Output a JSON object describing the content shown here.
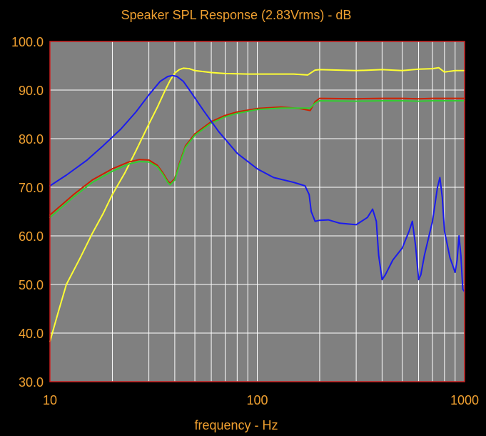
{
  "chart_data": {
    "type": "line",
    "title": "Speaker SPL Response (2.83Vrms) - dB",
    "xlabel": "frequency - Hz",
    "ylabel": "",
    "x_scale": "log",
    "xlim": [
      10,
      1000
    ],
    "ylim": [
      30,
      100
    ],
    "grid": true,
    "x_tick_labels": [
      "10",
      "100",
      "1000"
    ],
    "y_tick_labels": [
      "100.0",
      "90.0",
      "80.0",
      "70.0",
      "60.0",
      "50.0",
      "40.0",
      "30.0"
    ],
    "y_tick_values": [
      100,
      90,
      80,
      70,
      60,
      50,
      40,
      30
    ],
    "colors": {
      "background": "#000000",
      "plot_area": "#808080",
      "frame": "#cc2020",
      "grid": "#ffffff",
      "text": "#f0a030"
    },
    "series": [
      {
        "color": "#ffff33",
        "x": [
          10,
          11,
          12,
          14,
          16,
          18,
          20,
          23,
          26,
          30,
          33,
          36,
          38,
          40,
          42,
          44,
          47,
          50,
          60,
          70,
          90,
          110,
          150,
          175,
          190,
          200,
          300,
          400,
          500,
          600,
          700,
          750,
          800,
          900,
          1000
        ],
        "y": [
          38.3,
          44.5,
          50,
          55.5,
          60.5,
          64.5,
          68.5,
          73,
          77.5,
          83,
          86.5,
          90,
          92,
          93.5,
          94.2,
          94.5,
          94.4,
          94,
          93.6,
          93.4,
          93.3,
          93.3,
          93.3,
          93.1,
          94.1,
          94.2,
          94,
          94.2,
          94,
          94.3,
          94.4,
          94.6,
          93.7,
          94,
          94
        ]
      },
      {
        "color": "#cc2200",
        "x": [
          10,
          13,
          16,
          20,
          24,
          27,
          30,
          33,
          35,
          37,
          38,
          40,
          42,
          45,
          50,
          60,
          70,
          80,
          100,
          130,
          160,
          180,
          190,
          200,
          300,
          400,
          500,
          600,
          700,
          800,
          900,
          1000
        ],
        "y": [
          64.3,
          68.5,
          71.5,
          73.8,
          75.2,
          75.7,
          75.6,
          74.5,
          73,
          71.3,
          70.8,
          71.8,
          74.8,
          78.5,
          81,
          83.5,
          84.8,
          85.5,
          86.2,
          86.5,
          86.2,
          85.8,
          87.6,
          88.3,
          88.2,
          88.3,
          88.3,
          88.2,
          88.3,
          88.3,
          88.3,
          88.3
        ]
      },
      {
        "color": "#33cc33",
        "x": [
          10,
          13,
          16,
          20,
          24,
          27,
          30,
          33,
          35,
          37,
          38,
          40,
          42,
          45,
          50,
          60,
          70,
          80,
          100,
          130,
          160,
          180,
          190,
          200,
          300,
          400,
          500,
          600,
          700,
          800,
          900,
          1000
        ],
        "y": [
          63.8,
          68,
          71,
          73.3,
          74.8,
          75.3,
          75.2,
          74.2,
          72.7,
          71,
          70.5,
          71.5,
          74.5,
          78.2,
          80.7,
          83.2,
          84.5,
          85.2,
          86,
          86.3,
          86.3,
          86.3,
          87.3,
          87.8,
          87.7,
          87.8,
          87.8,
          87.7,
          87.8,
          87.8,
          87.8,
          87.8
        ]
      },
      {
        "color": "#1a1aee",
        "x": [
          10,
          12,
          15,
          18,
          22,
          26,
          30,
          34,
          37,
          39,
          41,
          44,
          48,
          55,
          65,
          80,
          100,
          120,
          150,
          170,
          178,
          182,
          190,
          200,
          220,
          250,
          300,
          340,
          360,
          375,
          385,
          400,
          415,
          450,
          500,
          540,
          560,
          580,
          600,
          615,
          640,
          700,
          740,
          760,
          780,
          800,
          850,
          900,
          920,
          940,
          960,
          980,
          1000
        ],
        "y": [
          70.3,
          72.5,
          75.5,
          78.5,
          82,
          85.5,
          89,
          91.8,
          92.8,
          93,
          92.8,
          91.8,
          89.5,
          85.8,
          81.5,
          77,
          73.8,
          72,
          71,
          70.3,
          68.5,
          65,
          63,
          63.2,
          63.3,
          62.6,
          62.3,
          63.8,
          65.5,
          63,
          56,
          51,
          52,
          55,
          57.5,
          61,
          63,
          58,
          51,
          52,
          56,
          63,
          70,
          72,
          68,
          61,
          55.5,
          52.5,
          55,
          60,
          56,
          49,
          48.5
        ]
      }
    ]
  }
}
